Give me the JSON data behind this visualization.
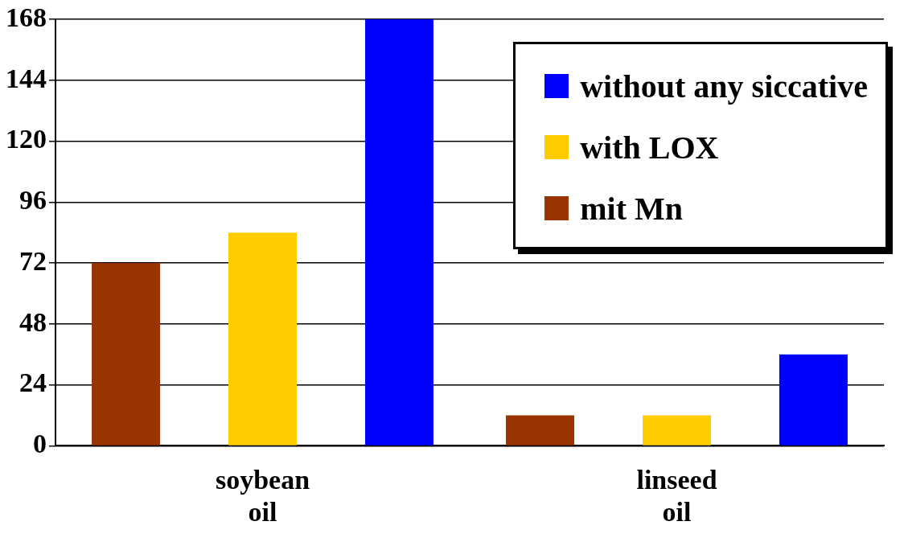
{
  "chart_data": {
    "type": "bar",
    "categories": [
      "soybean oil",
      "linseed oil"
    ],
    "series": [
      {
        "name": "mit Mn",
        "color": "#993300",
        "values": [
          72,
          12
        ]
      },
      {
        "name": "with LOX",
        "color": "#ffcc00",
        "values": [
          84,
          12
        ]
      },
      {
        "name": "without any siccative",
        "color": "#0000ff",
        "values": [
          168,
          36
        ]
      }
    ],
    "ylim": [
      0,
      168
    ],
    "yticks": [
      0,
      24,
      48,
      72,
      96,
      120,
      144,
      168
    ],
    "grid": "y",
    "legend": "top right"
  }
}
